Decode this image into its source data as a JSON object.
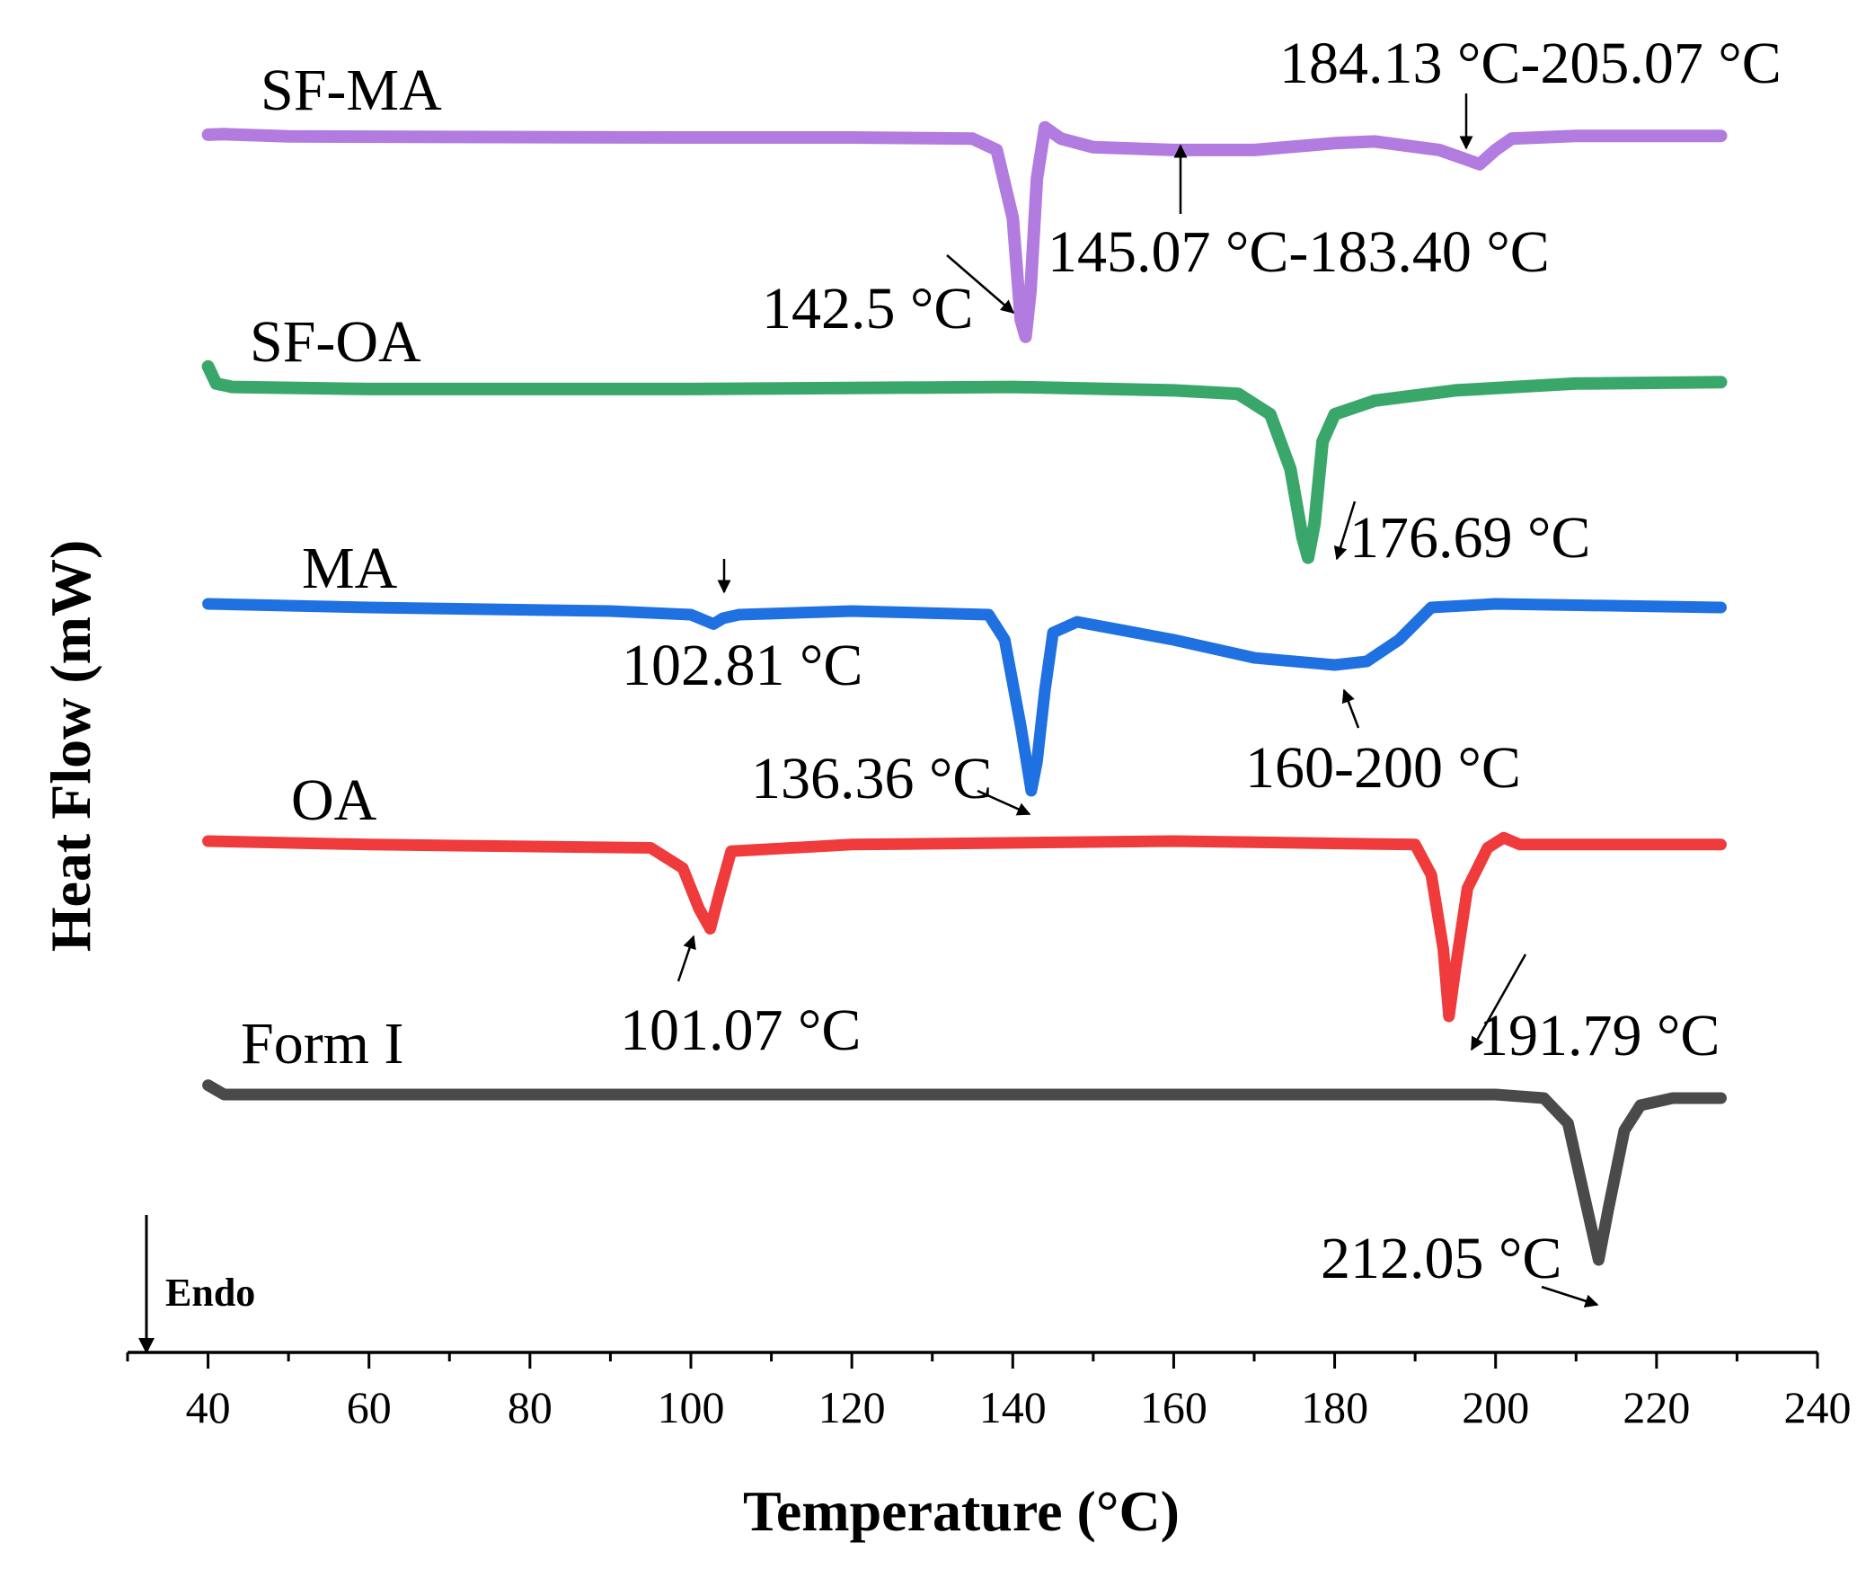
{
  "chart_data": {
    "type": "line",
    "title": "",
    "xlabel": "Temperature (°C)",
    "ylabel": "Heat Flow (mW)",
    "xlim": [
      30,
      240
    ],
    "xticks": [
      "40",
      "60",
      "80",
      "100",
      "120",
      "140",
      "160",
      "180",
      "200",
      "220",
      "240"
    ],
    "endo_label": "Endo",
    "series": [
      {
        "name": "SF-MA",
        "color": "#b27be0",
        "points": [
          [
            40,
            0.03
          ],
          [
            42,
            0.02
          ],
          [
            50,
            0.06
          ],
          [
            70,
            0.07
          ],
          [
            100,
            0.08
          ],
          [
            120,
            0.08
          ],
          [
            135,
            0.1
          ],
          [
            138,
            0.3
          ],
          [
            140,
            1.5
          ],
          [
            141,
            3.3
          ],
          [
            141.6,
            3.6
          ],
          [
            142.2,
            2.8
          ],
          [
            143,
            0.8
          ],
          [
            144,
            -0.1
          ],
          [
            146,
            0.1
          ],
          [
            150,
            0.25
          ],
          [
            160,
            0.3
          ],
          [
            170,
            0.3
          ],
          [
            180,
            0.18
          ],
          [
            185,
            0.15
          ],
          [
            193,
            0.3
          ],
          [
            196,
            0.45
          ],
          [
            198,
            0.55
          ],
          [
            200,
            0.3
          ],
          [
            202,
            0.1
          ],
          [
            210,
            0.05
          ],
          [
            228,
            0.05
          ]
        ]
      },
      {
        "name": "SF-OA",
        "color": "#3aa76a",
        "points": [
          [
            40,
            -0.2
          ],
          [
            41,
            0.05
          ],
          [
            43,
            0.1
          ],
          [
            60,
            0.13
          ],
          [
            100,
            0.13
          ],
          [
            140,
            0.1
          ],
          [
            160,
            0.15
          ],
          [
            168,
            0.2
          ],
          [
            172,
            0.5
          ],
          [
            174.5,
            1.3
          ],
          [
            176,
            2.3
          ],
          [
            176.7,
            2.6
          ],
          [
            177.5,
            2.1
          ],
          [
            178.5,
            0.9
          ],
          [
            180,
            0.5
          ],
          [
            185,
            0.3
          ],
          [
            195,
            0.15
          ],
          [
            210,
            0.05
          ],
          [
            228,
            0.03
          ]
        ]
      },
      {
        "name": "MA",
        "color": "#1f70e0",
        "points": [
          [
            40,
            0
          ],
          [
            60,
            0.05
          ],
          [
            90,
            0.1
          ],
          [
            100,
            0.15
          ],
          [
            102.8,
            0.28
          ],
          [
            104,
            0.2
          ],
          [
            106,
            0.15
          ],
          [
            120,
            0.1
          ],
          [
            137,
            0.15
          ],
          [
            139,
            0.5
          ],
          [
            141,
            1.7
          ],
          [
            142.3,
            2.6
          ],
          [
            143,
            2.2
          ],
          [
            144,
            1.2
          ],
          [
            145,
            0.4
          ],
          [
            148,
            0.25
          ],
          [
            160,
            0.5
          ],
          [
            170,
            0.75
          ],
          [
            180,
            0.85
          ],
          [
            184,
            0.8
          ],
          [
            188,
            0.5
          ],
          [
            192,
            0.05
          ],
          [
            200,
            0
          ],
          [
            228,
            0.05
          ]
        ]
      },
      {
        "name": "OA",
        "color": "#ef3b3b",
        "points": [
          [
            40,
            0
          ],
          [
            60,
            0.05
          ],
          [
            95,
            0.1
          ],
          [
            99,
            0.4
          ],
          [
            101,
            1.0
          ],
          [
            102.4,
            1.3
          ],
          [
            103.5,
            0.8
          ],
          [
            105,
            0.15
          ],
          [
            120,
            0.05
          ],
          [
            160,
            0
          ],
          [
            190,
            0.05
          ],
          [
            192,
            0.5
          ],
          [
            193.5,
            1.6
          ],
          [
            194.2,
            2.6
          ],
          [
            195,
            1.9
          ],
          [
            196.5,
            0.7
          ],
          [
            199,
            0.1
          ],
          [
            201,
            -0.05
          ],
          [
            203,
            0.05
          ],
          [
            210,
            0.05
          ],
          [
            228,
            0.05
          ]
        ]
      },
      {
        "name": "Form I",
        "color": "#4a4a4a",
        "points": [
          [
            40,
            -0.03
          ],
          [
            42,
            0.1
          ],
          [
            45,
            0.1
          ],
          [
            80,
            0.1
          ],
          [
            150,
            0.1
          ],
          [
            200,
            0.1
          ],
          [
            206,
            0.15
          ],
          [
            209,
            0.5
          ],
          [
            211,
            1.5
          ],
          [
            212.8,
            2.4
          ],
          [
            214,
            1.7
          ],
          [
            216,
            0.6
          ],
          [
            218,
            0.25
          ],
          [
            222,
            0.15
          ],
          [
            228,
            0.15
          ]
        ]
      }
    ],
    "annotations": [
      {
        "series": "SF-MA",
        "text": "142.5 °C"
      },
      {
        "series": "SF-MA",
        "text": "145.07 °C-183.40 °C"
      },
      {
        "series": "SF-MA",
        "text": "184.13 °C-205.07 °C"
      },
      {
        "series": "SF-OA",
        "text": "176.69 °C"
      },
      {
        "series": "MA",
        "text": "102.81 °C"
      },
      {
        "series": "MA",
        "text": "136.36 °C"
      },
      {
        "series": "MA",
        "text": "160-200  °C"
      },
      {
        "series": "OA",
        "text": "101.07 °C"
      },
      {
        "series": "OA",
        "text": "191.79 °C"
      },
      {
        "series": "Form I",
        "text": "212.05  °C"
      }
    ]
  }
}
